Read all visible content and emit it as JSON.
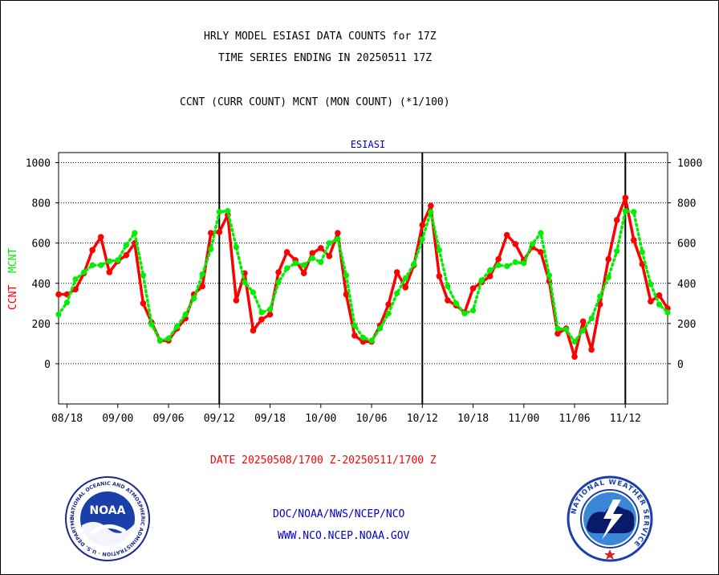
{
  "header": {
    "title_line1": "HRLY MODEL ESIASI DATA COUNTS for 17Z",
    "title_line2": "TIME SERIES ENDING IN 20250511 17Z",
    "subtitle": "CCNT (CURR COUNT) MCNT (MON COUNT) (*1/100)"
  },
  "footer": {
    "date_range": "DATE 20250508/1700 Z-20250511/1700 Z",
    "org": "DOC/NOAA/NWS/NCEP/NCO",
    "url": "WWW.NCO.NCEP.NOAA.GOV"
  },
  "logos": {
    "noaa_text": "NOAA",
    "noaa_ring": "NATIONAL OCEANIC AND ATMOSPHERIC ADMINISTRATION · U.S. DEPARTMENT OF COMMERCE ·",
    "nws_ring": "NATIONAL WEATHER SERVICE"
  },
  "chart_data": {
    "type": "line",
    "title": "ESIASI",
    "ylabel_left": [
      "CCNT",
      "MCNT"
    ],
    "ylim": [
      -200,
      1050
    ],
    "yticks": [
      0,
      200,
      400,
      600,
      800,
      1000
    ],
    "x_tick_labels": [
      "08/18",
      "09/00",
      "09/06",
      "09/12",
      "09/18",
      "10/00",
      "10/06",
      "10/12",
      "10/18",
      "11/00",
      "11/06",
      "11/12"
    ],
    "x_tick_hours": [
      1,
      7,
      13,
      19,
      25,
      31,
      37,
      43,
      49,
      55,
      61,
      67
    ],
    "day_boundary_hours": [
      19,
      43,
      67
    ],
    "grid": true,
    "colors": {
      "ccnt": "#ff0000",
      "mcnt": "#00ee00",
      "grid": "#000000",
      "title": "#0000cc"
    },
    "series": [
      {
        "name": "CCNT",
        "x": [
          0,
          1,
          2,
          3,
          4,
          5,
          6,
          7,
          8,
          9,
          10,
          11,
          12,
          13,
          14,
          15,
          16,
          17,
          18,
          19,
          20,
          21,
          22,
          23,
          24,
          25,
          26,
          27,
          28,
          29,
          30,
          31,
          32,
          33,
          34,
          35,
          36,
          37,
          38,
          39,
          40,
          41,
          42,
          43,
          44,
          45,
          46,
          47,
          48,
          49,
          50,
          51,
          52,
          53,
          54,
          55,
          56,
          57,
          58,
          59,
          60,
          61,
          62,
          63,
          64,
          65,
          66,
          67,
          68,
          69,
          70,
          71,
          72
        ],
        "values": [
          345,
          345,
          370,
          450,
          565,
          630,
          455,
          510,
          540,
          600,
          300,
          205,
          115,
          115,
          175,
          225,
          345,
          385,
          650,
          655,
          740,
          315,
          450,
          165,
          220,
          245,
          455,
          555,
          515,
          450,
          550,
          575,
          535,
          650,
          345,
          140,
          110,
          110,
          190,
          295,
          455,
          380,
          490,
          690,
          785,
          435,
          315,
          290,
          255,
          375,
          405,
          435,
          520,
          640,
          595,
          515,
          580,
          555,
          410,
          150,
          175,
          35,
          210,
          70,
          295,
          520,
          715,
          825,
          615,
          495,
          310,
          340,
          275
        ]
      },
      {
        "name": "MCNT",
        "x": [
          0,
          1,
          2,
          3,
          4,
          5,
          6,
          7,
          8,
          9,
          10,
          11,
          12,
          13,
          14,
          15,
          16,
          17,
          18,
          19,
          20,
          21,
          22,
          23,
          24,
          25,
          26,
          27,
          28,
          29,
          30,
          31,
          32,
          33,
          34,
          35,
          36,
          37,
          38,
          39,
          40,
          41,
          42,
          43,
          44,
          45,
          46,
          47,
          48,
          49,
          50,
          51,
          52,
          53,
          54,
          55,
          56,
          57,
          58,
          59,
          60,
          61,
          62,
          63,
          64,
          65,
          66,
          67,
          68,
          69,
          70,
          71,
          72
        ],
        "values": [
          245,
          305,
          420,
          455,
          490,
          490,
          510,
          515,
          590,
          650,
          440,
          195,
          115,
          125,
          185,
          245,
          325,
          445,
          570,
          755,
          760,
          580,
          405,
          355,
          255,
          270,
          405,
          475,
          500,
          490,
          525,
          505,
          600,
          620,
          440,
          190,
          130,
          115,
          175,
          250,
          350,
          425,
          495,
          620,
          755,
          565,
          385,
          300,
          250,
          265,
          415,
          465,
          490,
          485,
          505,
          500,
          595,
          650,
          440,
          175,
          170,
          110,
          165,
          225,
          335,
          430,
          560,
          760,
          755,
          555,
          395,
          295,
          255
        ]
      }
    ]
  }
}
